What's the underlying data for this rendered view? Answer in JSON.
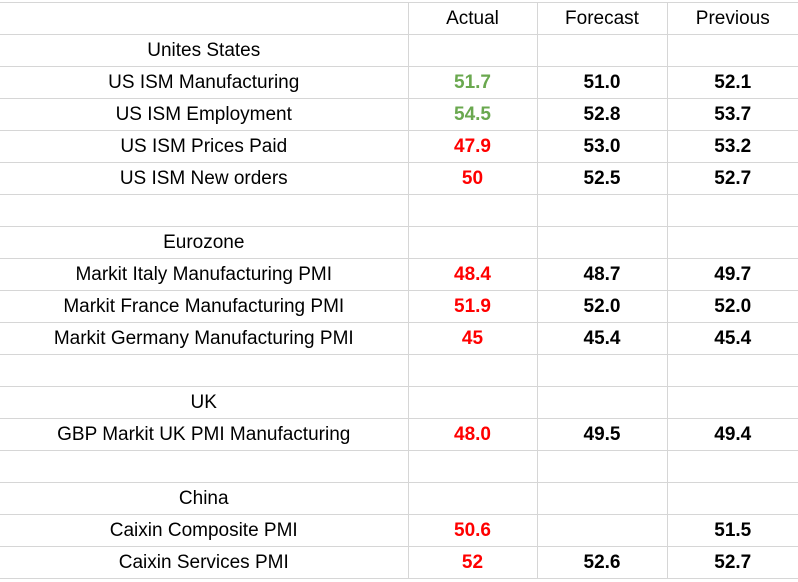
{
  "header": {
    "actual": "Actual",
    "forecast": "Forecast",
    "previous": "Previous"
  },
  "colors": {
    "beat": "#6aa84f",
    "miss": "#ff0000",
    "neutral": "#000000"
  },
  "rows": [
    {
      "type": "section",
      "label": "Unites States"
    },
    {
      "type": "data",
      "label": "US ISM Manufacturing",
      "actual": "51.7",
      "actual_status": "green",
      "forecast": "51.0",
      "previous": "52.1"
    },
    {
      "type": "data",
      "label": "US ISM Employment",
      "actual": "54.5",
      "actual_status": "green",
      "forecast": "52.8",
      "previous": "53.7"
    },
    {
      "type": "data",
      "label": "US ISM Prices Paid",
      "actual": "47.9",
      "actual_status": "red",
      "forecast": "53.0",
      "previous": "53.2"
    },
    {
      "type": "data",
      "label": "US ISM New orders",
      "actual": "50",
      "actual_status": "red",
      "forecast": "52.5",
      "previous": "52.7"
    },
    {
      "type": "blank"
    },
    {
      "type": "section",
      "label": "Eurozone"
    },
    {
      "type": "data",
      "label": "Markit Italy Manufacturing PMI",
      "actual": "48.4",
      "actual_status": "red",
      "forecast": "48.7",
      "previous": "49.7"
    },
    {
      "type": "data",
      "label": "Markit France Manufacturing PMI",
      "actual": "51.9",
      "actual_status": "red",
      "forecast": "52.0",
      "previous": "52.0"
    },
    {
      "type": "data",
      "label": "Markit Germany Manufacturing PMI",
      "actual": "45",
      "actual_status": "red",
      "forecast": "45.4",
      "previous": "45.4"
    },
    {
      "type": "blank"
    },
    {
      "type": "section",
      "label": "UK"
    },
    {
      "type": "data",
      "label": "GBP Markit UK PMI Manufacturing",
      "actual": "48.0",
      "actual_status": "red",
      "forecast": "49.5",
      "previous": "49.4"
    },
    {
      "type": "blank"
    },
    {
      "type": "section",
      "label": "China"
    },
    {
      "type": "data",
      "label": "Caixin Composite PMI",
      "actual": "50.6",
      "actual_status": "red",
      "forecast": "",
      "previous": "51.5"
    },
    {
      "type": "data",
      "label": "Caixin Services PMI",
      "actual": "52",
      "actual_status": "red",
      "forecast": "52.6",
      "previous": "52.7"
    }
  ]
}
